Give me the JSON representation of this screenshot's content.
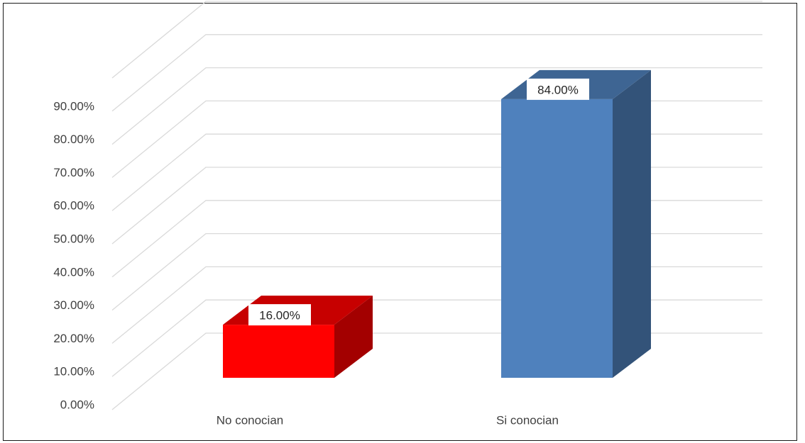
{
  "chart_data": {
    "type": "bar",
    "style": "3d-column",
    "title": "",
    "xlabel": "",
    "ylabel": "",
    "categories": [
      "No conocian",
      "Si conocian"
    ],
    "values": [
      16.0,
      84.0
    ],
    "data_labels": [
      "16.00%",
      "84.00%"
    ],
    "bar_colors": [
      "#ff0000",
      "#4f81bd"
    ],
    "ylim": [
      0,
      100
    ],
    "y_ticks": [
      {
        "value": 0,
        "label": "0.00%"
      },
      {
        "value": 10,
        "label": "10.00%"
      },
      {
        "value": 20,
        "label": "20.00%"
      },
      {
        "value": 30,
        "label": "30.00%"
      },
      {
        "value": 40,
        "label": "40.00%"
      },
      {
        "value": 50,
        "label": "50.00%"
      },
      {
        "value": 60,
        "label": "60.00%"
      },
      {
        "value": 70,
        "label": "70.00%"
      },
      {
        "value": 80,
        "label": "80.00%"
      },
      {
        "value": 90,
        "label": "90.00%"
      }
    ],
    "gridlines": true,
    "legend": "none",
    "colors": {
      "grid": "#d9d9d9",
      "text": "#404040"
    }
  }
}
